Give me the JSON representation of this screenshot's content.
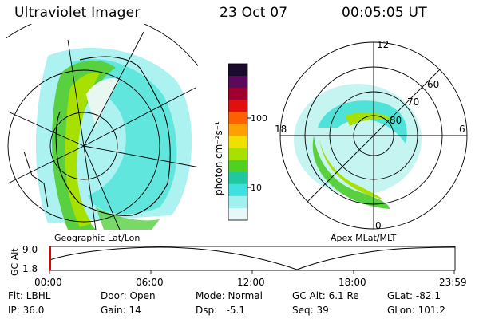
{
  "header": {
    "title": "Ultraviolet Imager",
    "date": "23 Oct 07",
    "time": "00:05:05 UT"
  },
  "geo_map": {
    "label": "Geographic Lat/Lon"
  },
  "apex_map": {
    "label": "Apex MLat/MLT",
    "mlt_labels": [
      "12",
      "18",
      "6",
      "0"
    ],
    "lat_labels": [
      "60",
      "70",
      "80"
    ]
  },
  "colorbar": {
    "unit_label": "photon cm⁻²s⁻¹",
    "tick_labels": [
      "100",
      "10"
    ],
    "colors": [
      "#1a0a2e",
      "#5a0a5a",
      "#a00030",
      "#e01010",
      "#ff6000",
      "#ffa000",
      "#f0e000",
      "#a8e000",
      "#50d020",
      "#20c8a0",
      "#40e0e0",
      "#a0f0f0",
      "#e8f8f8"
    ]
  },
  "altitude_plot": {
    "ylabel": "GC Alt",
    "y_ticks": [
      "9.0",
      "1.8"
    ],
    "x_ticks": [
      "00:00",
      "06:00",
      "12:00",
      "18:00",
      "23:59"
    ]
  },
  "footer": {
    "flt": "Flt: LBHL",
    "ip": "IP: 36.0",
    "door": "Door: Open",
    "gain": "Gain: 14",
    "mode": "Mode: Normal",
    "dsp": "Dsp:   -5.1",
    "gc_alt": "GC Alt: 6.1 Re",
    "seq": "Seq: 39",
    "glat": "GLat: -82.1",
    "glon": "GLon: 101.2"
  }
}
